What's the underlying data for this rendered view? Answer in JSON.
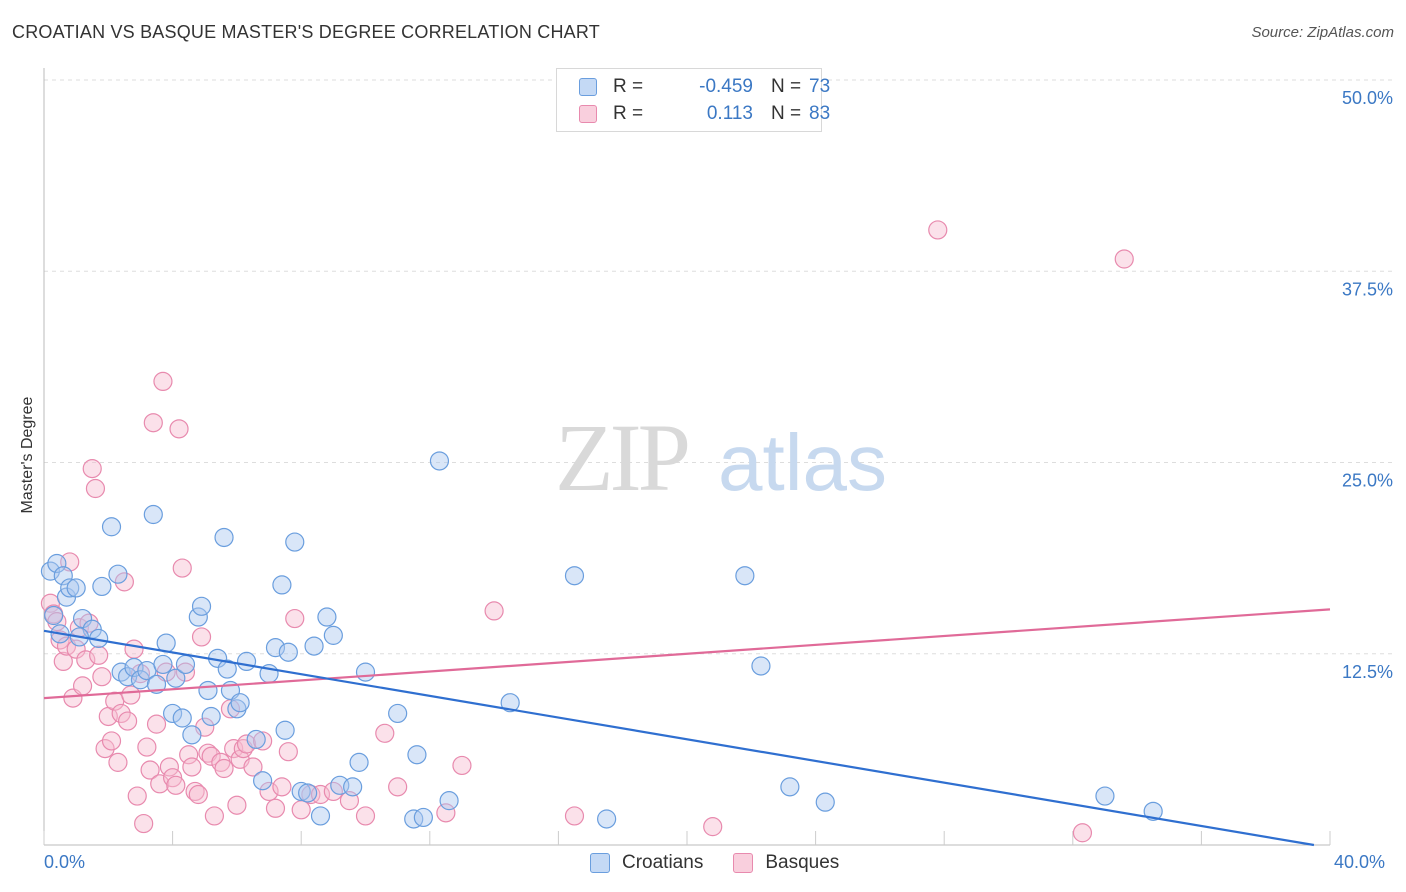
{
  "header": {
    "title": "CROATIAN VS BASQUE MASTER'S DEGREE CORRELATION CHART",
    "source": "Source: ZipAtlas.com"
  },
  "legend": {
    "croatians": {
      "r_label": "R =",
      "r_value": "-0.459",
      "n_label": "N =",
      "n_value": "73"
    },
    "basques": {
      "r_label": "R =",
      "r_value": "0.113",
      "n_label": "N =",
      "n_value": "83"
    }
  },
  "bottom_legend": {
    "croatians": "Croatians",
    "basques": "Basques"
  },
  "colors": {
    "croatians_fill": "#aac8f0",
    "croatians_stroke": "#6a9ede",
    "croatians_line": "#2f6fd0",
    "basques_fill": "#f6bcd0",
    "basques_stroke": "#e88aae",
    "basques_line": "#e06a98",
    "tick_text": "#3b78c4",
    "grid": "#dddddd"
  },
  "chart_data": {
    "type": "scatter",
    "title": "CROATIAN VS BASQUE MASTER'S DEGREE CORRELATION CHART",
    "xlabel": "",
    "ylabel": "Master's Degree",
    "xlim": [
      0,
      40
    ],
    "ylim": [
      0,
      50
    ],
    "y_ticks": [
      12.5,
      25.0,
      37.5,
      50.0
    ],
    "y_tick_labels": [
      "12.5%",
      "25.0%",
      "37.5%",
      "50.0%"
    ],
    "x_tick_labels": [
      "0.0%",
      "40.0%"
    ],
    "grid": true,
    "legend_placement": "top-center",
    "watermark": "ZIPatlas",
    "series": [
      {
        "name": "Croatians",
        "trend": {
          "x": [
            0,
            39.5
          ],
          "y": [
            14.0,
            0.0
          ]
        },
        "points": [
          [
            0.2,
            17.9
          ],
          [
            0.4,
            18.4
          ],
          [
            0.6,
            17.6
          ],
          [
            0.7,
            16.2
          ],
          [
            0.8,
            16.8
          ],
          [
            1.0,
            16.8
          ],
          [
            1.2,
            14.8
          ],
          [
            1.5,
            14.1
          ],
          [
            1.7,
            13.5
          ],
          [
            1.8,
            16.9
          ],
          [
            2.1,
            20.8
          ],
          [
            2.3,
            17.7
          ],
          [
            2.4,
            11.3
          ],
          [
            2.6,
            11.0
          ],
          [
            2.8,
            11.6
          ],
          [
            3.0,
            10.8
          ],
          [
            3.2,
            11.4
          ],
          [
            3.4,
            21.6
          ],
          [
            3.5,
            10.5
          ],
          [
            3.7,
            11.8
          ],
          [
            3.8,
            13.2
          ],
          [
            4.0,
            8.6
          ],
          [
            4.1,
            10.9
          ],
          [
            4.3,
            8.3
          ],
          [
            4.4,
            11.8
          ],
          [
            4.6,
            7.2
          ],
          [
            4.8,
            14.9
          ],
          [
            4.9,
            15.6
          ],
          [
            5.1,
            10.1
          ],
          [
            5.2,
            8.4
          ],
          [
            5.4,
            12.2
          ],
          [
            5.6,
            20.1
          ],
          [
            5.7,
            11.5
          ],
          [
            5.8,
            10.1
          ],
          [
            6.0,
            8.9
          ],
          [
            6.1,
            9.3
          ],
          [
            6.3,
            12.0
          ],
          [
            6.6,
            6.9
          ],
          [
            6.8,
            4.2
          ],
          [
            7.0,
            11.2
          ],
          [
            7.2,
            12.9
          ],
          [
            7.4,
            17.0
          ],
          [
            7.5,
            7.5
          ],
          [
            7.6,
            12.6
          ],
          [
            7.8,
            19.8
          ],
          [
            8.0,
            3.5
          ],
          [
            8.2,
            3.4
          ],
          [
            8.4,
            13.0
          ],
          [
            8.6,
            1.9
          ],
          [
            8.8,
            14.9
          ],
          [
            9.0,
            13.7
          ],
          [
            9.2,
            3.9
          ],
          [
            9.6,
            3.8
          ],
          [
            9.8,
            5.4
          ],
          [
            10.0,
            11.3
          ],
          [
            11.0,
            8.6
          ],
          [
            11.5,
            1.7
          ],
          [
            11.6,
            5.9
          ],
          [
            11.8,
            1.8
          ],
          [
            12.6,
            2.9
          ],
          [
            12.3,
            25.1
          ],
          [
            14.5,
            9.3
          ],
          [
            16.5,
            17.6
          ],
          [
            17.5,
            1.7
          ],
          [
            21.8,
            17.6
          ],
          [
            22.3,
            11.7
          ],
          [
            23.2,
            3.8
          ],
          [
            24.3,
            2.8
          ],
          [
            33.0,
            3.2
          ],
          [
            34.5,
            2.2
          ],
          [
            0.3,
            15.0
          ],
          [
            0.5,
            13.8
          ],
          [
            1.1,
            13.6
          ]
        ]
      },
      {
        "name": "Basques",
        "trend": {
          "x": [
            0,
            40
          ],
          "y": [
            9.6,
            15.4
          ]
        },
        "points": [
          [
            0.2,
            15.8
          ],
          [
            0.3,
            15.1
          ],
          [
            0.4,
            14.6
          ],
          [
            0.5,
            13.4
          ],
          [
            0.6,
            12.0
          ],
          [
            0.7,
            13.0
          ],
          [
            0.8,
            18.5
          ],
          [
            0.9,
            9.6
          ],
          [
            1.0,
            12.8
          ],
          [
            1.1,
            14.2
          ],
          [
            1.2,
            10.4
          ],
          [
            1.3,
            12.1
          ],
          [
            1.4,
            14.5
          ],
          [
            1.5,
            24.6
          ],
          [
            1.6,
            23.3
          ],
          [
            1.7,
            12.4
          ],
          [
            1.8,
            11.0
          ],
          [
            1.9,
            6.3
          ],
          [
            2.0,
            8.4
          ],
          [
            2.1,
            6.8
          ],
          [
            2.2,
            9.4
          ],
          [
            2.3,
            5.4
          ],
          [
            2.4,
            8.6
          ],
          [
            2.5,
            17.2
          ],
          [
            2.6,
            8.1
          ],
          [
            2.7,
            9.8
          ],
          [
            2.8,
            12.8
          ],
          [
            2.9,
            3.2
          ],
          [
            3.0,
            11.2
          ],
          [
            3.1,
            1.4
          ],
          [
            3.2,
            6.4
          ],
          [
            3.3,
            4.9
          ],
          [
            3.4,
            27.6
          ],
          [
            3.5,
            7.9
          ],
          [
            3.6,
            4.0
          ],
          [
            3.7,
            30.3
          ],
          [
            3.8,
            11.3
          ],
          [
            3.9,
            5.1
          ],
          [
            4.0,
            4.4
          ],
          [
            4.1,
            3.9
          ],
          [
            4.2,
            27.2
          ],
          [
            4.3,
            18.1
          ],
          [
            4.4,
            11.3
          ],
          [
            4.5,
            5.9
          ],
          [
            4.6,
            5.1
          ],
          [
            4.7,
            3.5
          ],
          [
            4.8,
            3.3
          ],
          [
            4.9,
            13.6
          ],
          [
            5.0,
            7.7
          ],
          [
            5.1,
            6.0
          ],
          [
            5.2,
            5.8
          ],
          [
            5.3,
            1.9
          ],
          [
            5.5,
            5.4
          ],
          [
            5.6,
            5.0
          ],
          [
            5.8,
            8.9
          ],
          [
            5.9,
            6.3
          ],
          [
            6.0,
            2.6
          ],
          [
            6.1,
            5.6
          ],
          [
            6.2,
            6.3
          ],
          [
            6.3,
            6.6
          ],
          [
            6.5,
            5.1
          ],
          [
            6.8,
            6.8
          ],
          [
            7.0,
            3.5
          ],
          [
            7.2,
            2.4
          ],
          [
            7.4,
            3.8
          ],
          [
            7.6,
            6.1
          ],
          [
            7.8,
            14.8
          ],
          [
            8.0,
            2.3
          ],
          [
            8.3,
            3.3
          ],
          [
            8.6,
            3.3
          ],
          [
            9.0,
            3.5
          ],
          [
            9.5,
            2.9
          ],
          [
            10.0,
            1.9
          ],
          [
            10.6,
            7.3
          ],
          [
            11.0,
            3.8
          ],
          [
            12.5,
            2.1
          ],
          [
            13.0,
            5.2
          ],
          [
            14.0,
            15.3
          ],
          [
            16.5,
            1.9
          ],
          [
            20.8,
            1.2
          ],
          [
            27.8,
            40.2
          ],
          [
            32.3,
            0.8
          ],
          [
            33.6,
            38.3
          ]
        ]
      }
    ]
  }
}
